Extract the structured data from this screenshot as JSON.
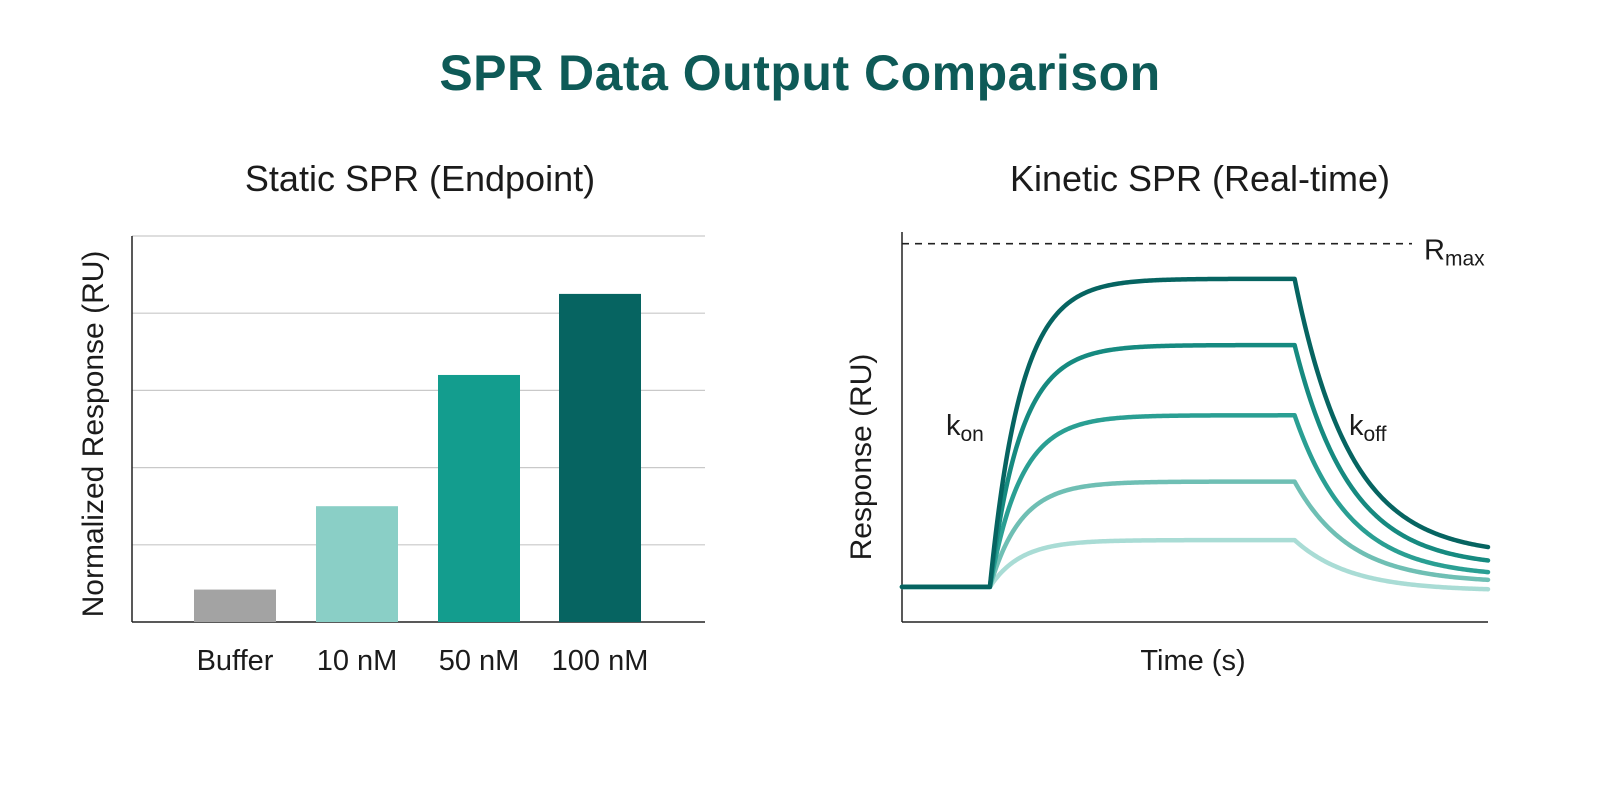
{
  "title": "SPR Data Output Comparison",
  "colors": {
    "title": "#0e5a57",
    "buffer": "#a3a3a3",
    "conc_10": "#8acfc6",
    "conc_50": "#139d8e",
    "conc_100": "#066461",
    "grid": "#c9c9c9",
    "axis": "#222222"
  },
  "chart_data": [
    {
      "type": "bar",
      "title": "Static SPR (Endpoint)",
      "ylabel": "Normalized Response (RU)",
      "xlabel": "",
      "categories": [
        "Buffer",
        "10 nM",
        "50 nM",
        "100 nM"
      ],
      "values": [
        0.42,
        1.5,
        3.2,
        4.25
      ],
      "bar_colors": [
        "#a3a3a3",
        "#8acfc6",
        "#139d8e",
        "#066461"
      ],
      "ylim": [
        0,
        5
      ],
      "grid": true,
      "legend": "none"
    },
    {
      "type": "line",
      "title": "Kinetic SPR (Real-time)",
      "ylabel": "Response (RU)",
      "xlabel": "Time (s)",
      "xlim": [
        0,
        100
      ],
      "ylim": [
        0,
        100
      ],
      "injection_start": 15,
      "injection_end": 67,
      "baseline": 9,
      "rmax": 97,
      "rmax_label": {
        "main": "R",
        "sub": "max"
      },
      "kon_label": {
        "main": "k",
        "sub": "on"
      },
      "koff_label": {
        "main": "k",
        "sub": "off"
      },
      "series": [
        {
          "plateau": 88,
          "end": 17,
          "color": "#066461"
        },
        {
          "plateau": 71,
          "end": 14,
          "color": "#168a80"
        },
        {
          "plateau": 53,
          "end": 11.5,
          "color": "#2a9f93"
        },
        {
          "plateau": 36,
          "end": 10,
          "color": "#6fbfb4"
        },
        {
          "plateau": 21,
          "end": 8,
          "color": "#a9dcd5"
        }
      ],
      "grid": false,
      "legend": "none"
    }
  ]
}
